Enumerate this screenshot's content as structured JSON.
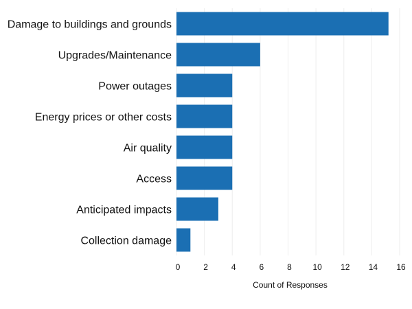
{
  "chart_data": {
    "type": "bar",
    "orientation": "horizontal",
    "categories": [
      "Damage to buildings and grounds",
      "Upgrades/Maintenance",
      "Power outages",
      "Energy prices or other costs",
      "Air quality",
      "Access",
      "Anticipated impacts",
      "Collection damage"
    ],
    "values": [
      15.2,
      6,
      4,
      4,
      4,
      4,
      3,
      1
    ],
    "xlabel": "Count of Responses",
    "ylabel": "",
    "xlim": [
      0,
      16
    ],
    "xticks": [
      "0",
      "2",
      "4",
      "6",
      "8",
      "10",
      "12",
      "14",
      "16"
    ],
    "grid": "vertical",
    "legend": "none",
    "bar_color": "#1b6fb3"
  }
}
